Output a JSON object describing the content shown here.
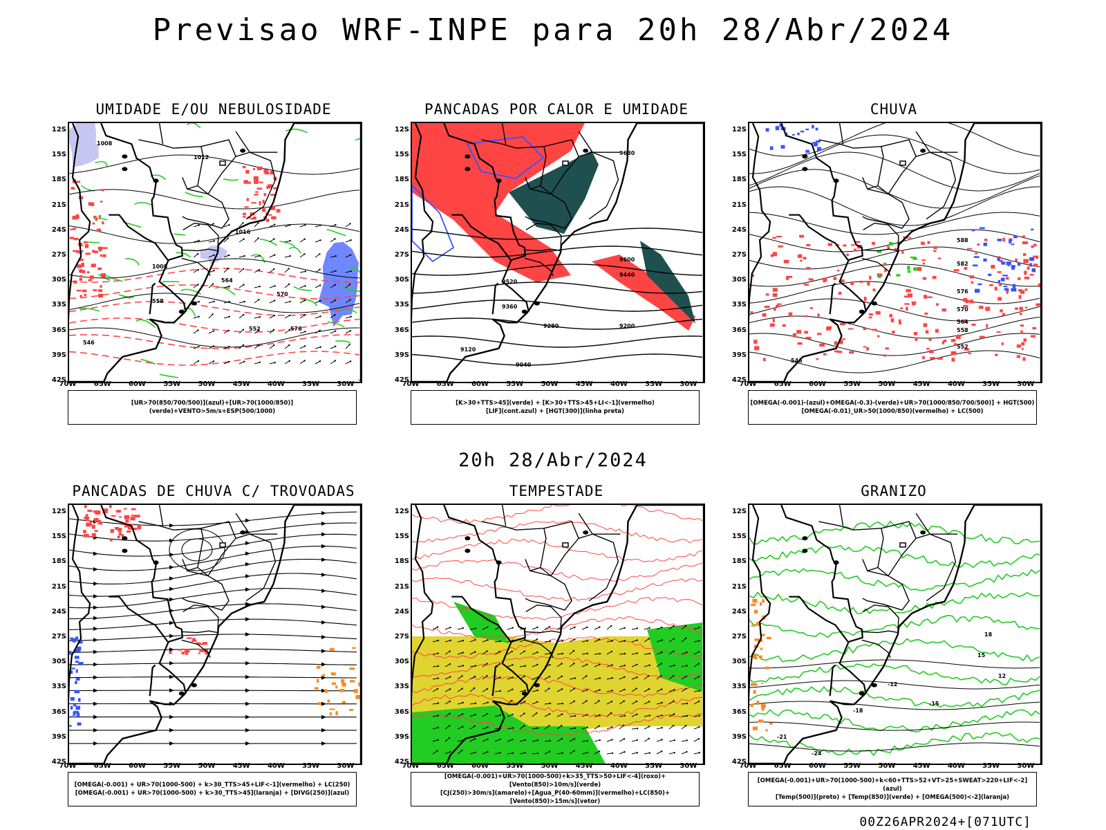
{
  "main_title": "Previsao WRF-INPE  para 20h 28/Abr/2024",
  "mid_title": "20h 28/Abr/2024",
  "footer": "00Z26APR2024+[071UTC]",
  "axes": {
    "lat_labels": [
      "12S",
      "15S",
      "18S",
      "21S",
      "24S",
      "27S",
      "30S",
      "33S",
      "36S",
      "39S",
      "42S"
    ],
    "lon_labels": [
      "70W",
      "65W",
      "60W",
      "55W",
      "50W",
      "45W",
      "40W",
      "35W",
      "30W"
    ]
  },
  "colors": {
    "red": "#ff4444",
    "green": "#22cc22",
    "blue": "#3355ff",
    "dark_teal": "#1f4f4f",
    "yellow": "#e0d430",
    "lavender": "#b8b8f0",
    "orange": "#ff8822"
  },
  "panels": [
    {
      "id": "umidade",
      "title": "UMIDADE E/OU NEBULOSIDADE",
      "legend": [
        "[UR>70(850/700/500)](azul)+[UR>70(1000/850)](verde)+VENTO>5m/s+ESP(500/1000)"
      ],
      "contour_labels": [
        "1008",
        "1012",
        "1016",
        "1008",
        "576",
        "570",
        "564",
        "558",
        "552",
        "546"
      ]
    },
    {
      "id": "pancadas-calor",
      "title": "PANCADAS POR CALOR E UMIDADE",
      "legend": [
        "[K>30+TTS>45](verde) + [K>30+TTS>45+LI<-1](vermelho)",
        "[LIF](cont.azul) + [HGT(300)](linha preta)"
      ],
      "contour_labels": [
        "9680",
        "9600",
        "9520",
        "9440",
        "9360",
        "9280",
        "9200",
        "9120",
        "9040"
      ]
    },
    {
      "id": "chuva",
      "title": "CHUVA",
      "legend": [
        "[OMEGA(-0.001)-(azul)+OMEGA(-0.3)-(verde)+UR>70(1000/850/700/500)] + HGT(500)",
        "[OMEGA(-0.01)_UR>50(1000/850)(vermelho) + LC(500)"
      ],
      "contour_labels": [
        "588",
        "582",
        "576",
        "570",
        "564",
        "558",
        "552",
        "546"
      ]
    },
    {
      "id": "pancadas-trovoadas",
      "title": "PANCADAS DE CHUVA C/ TROVOADAS",
      "legend": [
        "[OMEGA(-0.001) + UR>70(1000-500) + k>30_TTS>45+LIF<-1](vermelho) + LC(250)",
        "[OMEGA(-0.001) + UR>70(1000-500) + k>30_TTS>45](laranja) + [DIVG(250)](azul)"
      ],
      "contour_labels": []
    },
    {
      "id": "tempestade",
      "title": "TEMPESTADE",
      "legend": [
        "[OMEGA(-0.001)+UR>70(1000-500)+k>35_TTS>50+LIF<-4](roxo)+[Vento(850)>10m/s](verde)",
        "[CJ(250)>30m/s](amarelo)+[Agua_P(40-60mm)](vermelho)+LC(850)+[Vento(850)>15m/s](vetor)"
      ],
      "contour_labels": []
    },
    {
      "id": "granizo",
      "title": "GRANIZO",
      "legend": [
        "[OMEGA(-0.001)+UR>70(1000-500)+k<60+TTS>52+VT>25+SWEAT>220+LIF<-2](azul)",
        "[Temp(500)](preto) + [Temp(850)](verde) + [OMEGA(500)<-2](laranja)"
      ],
      "contour_labels": [
        "-12",
        "-15",
        "-18",
        "-21",
        "-24",
        "18",
        "15",
        "12"
      ]
    }
  ]
}
